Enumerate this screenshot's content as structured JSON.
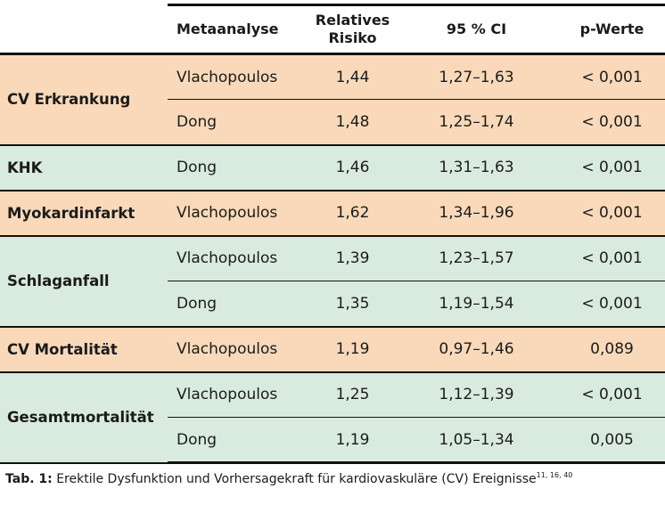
{
  "header": {
    "col_meta": "Metaanalyse",
    "col_rr_line1": "Relatives",
    "col_rr_line2": "Risiko",
    "col_ci": "95 % CI",
    "col_p": "p-Werte"
  },
  "groups": [
    {
      "label": "CV Erkrankung",
      "color": "#f9d9b9",
      "rows": [
        {
          "meta": "Vlachopoulos",
          "rr": "1,44",
          "ci": "1,27–1,63",
          "p": "< 0,001"
        },
        {
          "meta": "Dong",
          "rr": "1,48",
          "ci": "1,25–1,74",
          "p": "< 0,001"
        }
      ]
    },
    {
      "label": "KHK",
      "color": "#d9ebdf",
      "rows": [
        {
          "meta": "Dong",
          "rr": "1,46",
          "ci": "1,31–1,63",
          "p": "< 0,001"
        }
      ]
    },
    {
      "label": "Myokardinfarkt",
      "color": "#f9d9b9",
      "rows": [
        {
          "meta": "Vlachopoulos",
          "rr": "1,62",
          "ci": "1,34–1,96",
          "p": "< 0,001"
        }
      ]
    },
    {
      "label": "Schlaganfall",
      "color": "#d9ebdf",
      "rows": [
        {
          "meta": "Vlachopoulos",
          "rr": "1,39",
          "ci": "1,23–1,57",
          "p": "< 0,001"
        },
        {
          "meta": "Dong",
          "rr": "1,35",
          "ci": "1,19–1,54",
          "p": "< 0,001"
        }
      ]
    },
    {
      "label": "CV Mortalität",
      "color": "#f9d9b9",
      "rows": [
        {
          "meta": "Vlachopoulos",
          "rr": "1,19",
          "ci": "0,97–1,46",
          "p": "0,089"
        }
      ]
    },
    {
      "label": "Gesamtmortalität",
      "color": "#d9ebdf",
      "rows": [
        {
          "meta": "Vlachopoulos",
          "rr": "1,25",
          "ci": "1,12–1,39",
          "p": "< 0,001"
        },
        {
          "meta": "Dong",
          "rr": "1,19",
          "ci": "1,05–1,34",
          "p": "0,005"
        }
      ]
    }
  ],
  "caption": {
    "label": "Tab. 1:",
    "text": " Erektile Dysfunktion und Vorhersagekraft für kardiovaskuläre (CV) Ereignisse",
    "refs": "11, 16, 40"
  }
}
